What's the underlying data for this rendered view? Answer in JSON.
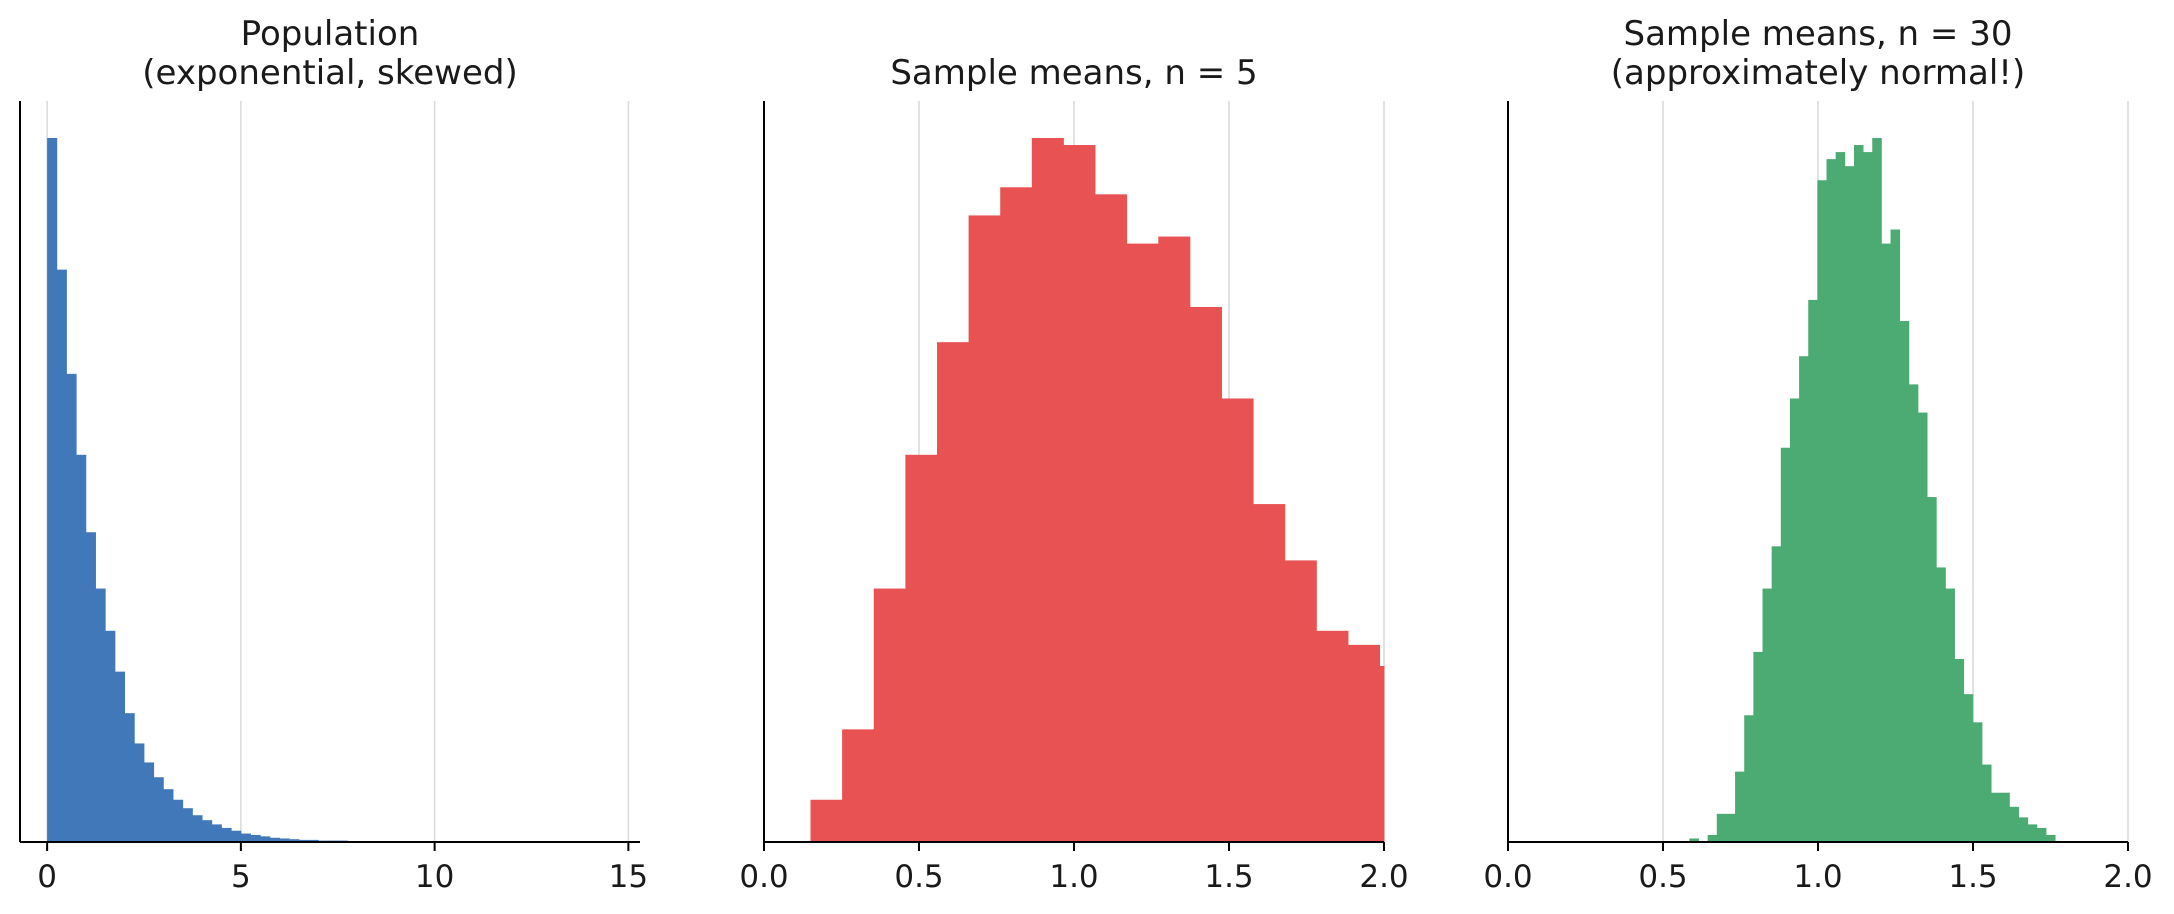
{
  "chart_data": [
    {
      "type": "bar",
      "title": "Population\n(exponential, skewed)",
      "color": "#4178b9",
      "xlim": [
        -0.7,
        15.3
      ],
      "ylim": [
        0,
        1.0
      ],
      "xticks": [
        0,
        5,
        10,
        15
      ],
      "xtick_labels": [
        "0",
        "5",
        "10",
        "15"
      ],
      "grid": true,
      "bin_width": 0.25,
      "bin_start": 0,
      "values": [
        1.0,
        0.813,
        0.665,
        0.55,
        0.44,
        0.36,
        0.3,
        0.242,
        0.183,
        0.14,
        0.113,
        0.092,
        0.075,
        0.06,
        0.048,
        0.038,
        0.031,
        0.025,
        0.02,
        0.016,
        0.012,
        0.01,
        0.008,
        0.006,
        0.005,
        0.004,
        0.003,
        0.003,
        0.002,
        0.002,
        0.002,
        0.001
      ]
    },
    {
      "type": "bar",
      "title": "Sample means, n = 5",
      "color": "#e85252",
      "xlim": [
        0.0,
        2.0
      ],
      "ylim": [
        0,
        1.0
      ],
      "xticks": [
        0.0,
        0.5,
        1.0,
        1.5,
        2.0
      ],
      "xtick_labels": [
        "0.0",
        "0.5",
        "1.0",
        "1.5",
        "2.0"
      ],
      "grid": true,
      "bin_width": 0.102,
      "bin_start": 0.15,
      "values": [
        0.06,
        0.16,
        0.36,
        0.55,
        0.71,
        0.89,
        0.93,
        1.0,
        0.99,
        0.92,
        0.85,
        0.86,
        0.76,
        0.63,
        0.48,
        0.4,
        0.3,
        0.28,
        0.25
      ]
    },
    {
      "type": "bar",
      "title": "Sample means, n = 30\n(approximately normal!)",
      "color": "#4caa73",
      "xlim": [
        0.0,
        2.0
      ],
      "ylim": [
        0,
        1.0
      ],
      "xticks": [
        0.0,
        0.5,
        1.0,
        1.5,
        2.0
      ],
      "xtick_labels": [
        "0.0",
        "0.5",
        "1.0",
        "1.5",
        "2.0"
      ],
      "grid": true,
      "bin_width": 0.0295,
      "bin_start": 0.585,
      "values": [
        0.005,
        0.0,
        0.01,
        0.04,
        0.04,
        0.1,
        0.18,
        0.27,
        0.36,
        0.42,
        0.56,
        0.63,
        0.69,
        0.77,
        0.94,
        0.97,
        0.98,
        0.96,
        0.99,
        0.98,
        1.0,
        0.85,
        0.87,
        0.74,
        0.65,
        0.61,
        0.49,
        0.39,
        0.36,
        0.26,
        0.21,
        0.17,
        0.11,
        0.07,
        0.07,
        0.05,
        0.035,
        0.025,
        0.02,
        0.01
      ]
    }
  ]
}
